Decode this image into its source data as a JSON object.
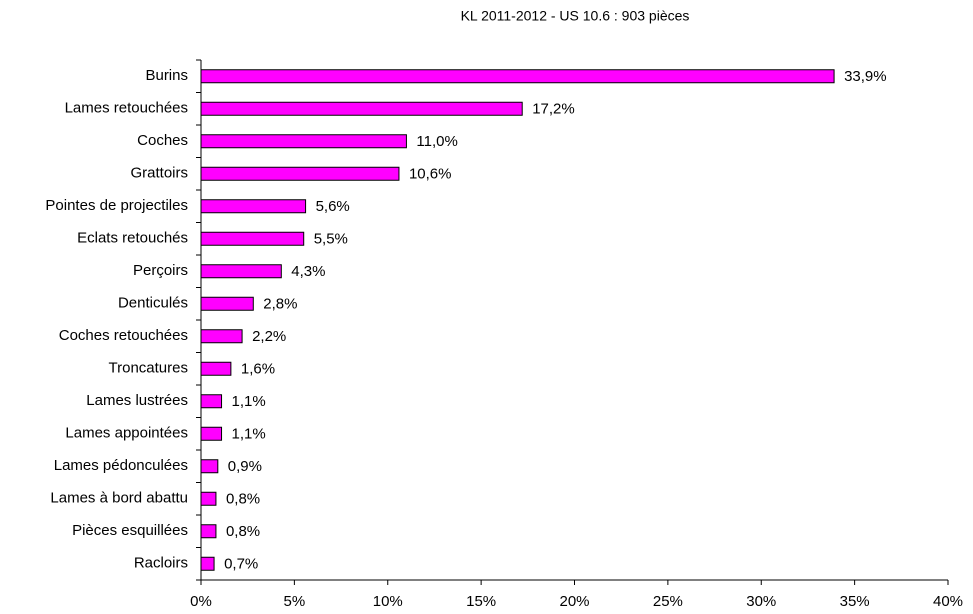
{
  "chart_data": {
    "type": "barh",
    "title": "KL 2011-2012 - US 10.6 : 903 pièces",
    "categories": [
      "Burins",
      "Lames retouchées",
      "Coches",
      "Grattoirs",
      "Pointes de projectiles",
      "Eclats retouchés",
      "Perçoirs",
      "Denticulés",
      "Coches retouchées",
      "Troncatures",
      "Lames lustrées",
      "Lames appointées",
      "Lames pédonculées",
      "Lames à bord abattu",
      "Pièces esquillées",
      "Racloirs"
    ],
    "values": [
      33.9,
      17.2,
      11.0,
      10.6,
      5.6,
      5.5,
      4.3,
      2.8,
      2.2,
      1.6,
      1.1,
      1.1,
      0.9,
      0.8,
      0.8,
      0.7
    ],
    "value_labels": [
      "33,9%",
      "17,2%",
      "11,0%",
      "10,6%",
      "5,6%",
      "5,5%",
      "4,3%",
      "2,8%",
      "2,2%",
      "1,6%",
      "1,1%",
      "1,1%",
      "0,9%",
      "0,8%",
      "0,8%",
      "0,7%"
    ],
    "color": "#ff00ff",
    "xlim": [
      0,
      40
    ],
    "xticks": [
      {
        "value": 0,
        "label": "0%"
      },
      {
        "value": 5,
        "label": "5%"
      },
      {
        "value": 10,
        "label": "10%"
      },
      {
        "value": 15,
        "label": "15%"
      },
      {
        "value": 20,
        "label": "20%"
      },
      {
        "value": 25,
        "label": "25%"
      },
      {
        "value": 30,
        "label": "30%"
      },
      {
        "value": 35,
        "label": "35%"
      },
      {
        "value": 40,
        "label": "40%"
      }
    ],
    "grid": false
  }
}
